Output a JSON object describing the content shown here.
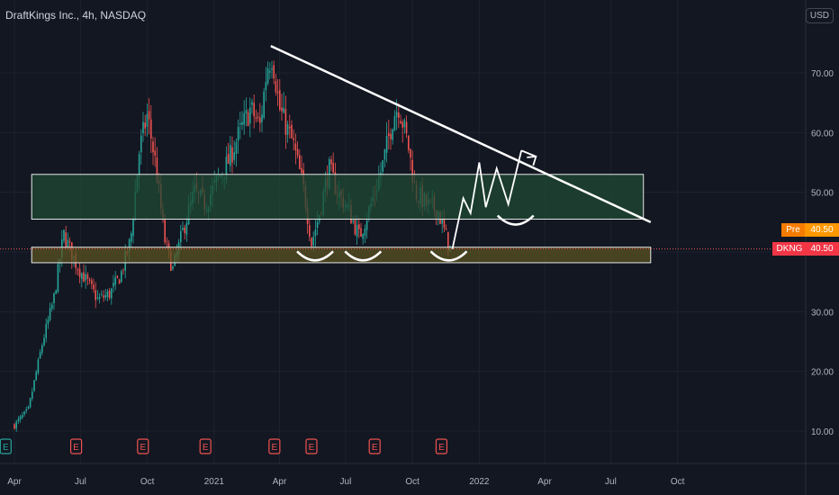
{
  "header": {
    "title": "DraftKings Inc., 4h, NASDAQ",
    "currency": "USD"
  },
  "price_tags": {
    "pre_label": "Pre",
    "pre_value": "40.50",
    "symbol_label": "DKNG",
    "symbol_value": "40.50"
  },
  "colors": {
    "background": "#131722",
    "up_candle": "#26a69a",
    "down_candle": "#ef5350",
    "upper_zone_fill": "#1f4a33",
    "lower_zone_fill": "#5a5220",
    "annotation": "#ffffff",
    "earnings_marker": "#ef5350",
    "grid": "#1e222d"
  },
  "chart_data": {
    "type": "candlestick",
    "y_ticks": [
      "70.00",
      "60.00",
      "50.00",
      "40.00",
      "30.00",
      "20.00",
      "10.00"
    ],
    "y_tick_values": [
      70,
      60,
      50,
      40,
      30,
      20,
      10
    ],
    "ylim": [
      4.5,
      81
    ],
    "x_ticks": [
      "Apr",
      "Jul",
      "Oct",
      "2021",
      "Apr",
      "Jul",
      "Oct",
      "2022",
      "Apr",
      "Jul",
      "Oct"
    ],
    "price_path": [
      [
        "2020-04-01",
        11.0
      ],
      [
        "2020-04-20",
        13.5
      ],
      [
        "2020-05-10",
        25.0
      ],
      [
        "2020-05-25",
        32.0
      ],
      [
        "2020-06-08",
        43.0
      ],
      [
        "2020-06-25",
        38.0
      ],
      [
        "2020-07-10",
        35.0
      ],
      [
        "2020-07-25",
        32.0
      ],
      [
        "2020-08-10",
        33.0
      ],
      [
        "2020-08-25",
        36.0
      ],
      [
        "2020-09-08",
        42.0
      ],
      [
        "2020-09-20",
        57.0
      ],
      [
        "2020-10-01",
        63.0
      ],
      [
        "2020-10-12",
        55.0
      ],
      [
        "2020-10-25",
        42.0
      ],
      [
        "2020-11-05",
        37.0
      ],
      [
        "2020-11-20",
        44.0
      ],
      [
        "2020-12-05",
        50.0
      ],
      [
        "2020-12-20",
        48.0
      ],
      [
        "2021-01-05",
        52.0
      ],
      [
        "2021-01-20",
        55.0
      ],
      [
        "2021-02-05",
        60.0
      ],
      [
        "2021-02-20",
        64.0
      ],
      [
        "2021-03-05",
        61.0
      ],
      [
        "2021-03-15",
        71.0
      ],
      [
        "2021-03-22",
        73.0
      ],
      [
        "2021-04-01",
        64.0
      ],
      [
        "2021-04-20",
        58.0
      ],
      [
        "2021-05-05",
        50.0
      ],
      [
        "2021-05-15",
        41.5
      ],
      [
        "2021-05-25",
        46.0
      ],
      [
        "2021-06-08",
        54.0
      ],
      [
        "2021-06-20",
        50.0
      ],
      [
        "2021-07-05",
        47.0
      ],
      [
        "2021-07-20",
        42.5
      ],
      [
        "2021-08-05",
        48.0
      ],
      [
        "2021-08-20",
        54.0
      ],
      [
        "2021-09-05",
        63.0
      ],
      [
        "2021-09-12",
        64.5
      ],
      [
        "2021-09-25",
        58.0
      ],
      [
        "2021-10-05",
        50.0
      ],
      [
        "2021-10-20",
        48.0
      ],
      [
        "2021-11-05",
        47.0
      ],
      [
        "2021-11-15",
        43.0
      ],
      [
        "2021-11-22",
        40.5
      ]
    ],
    "earnings_markers": [
      {
        "date": "2020-03-20",
        "label": "E",
        "kind": "dividend"
      },
      {
        "date": "2020-06-25",
        "label": "E"
      },
      {
        "date": "2020-09-25",
        "label": "E"
      },
      {
        "date": "2020-12-20",
        "label": "E"
      },
      {
        "date": "2021-03-25",
        "label": "E"
      },
      {
        "date": "2021-05-15",
        "label": "E"
      },
      {
        "date": "2021-08-10",
        "label": "E"
      },
      {
        "date": "2021-11-10",
        "label": "E"
      }
    ],
    "zones": [
      {
        "name": "upper",
        "y_min": 45.5,
        "y_max": 53.0,
        "x_start": "2020-06-01",
        "x_end": "2022-08-15"
      },
      {
        "name": "lower",
        "y_min": 38.2,
        "y_max": 40.8,
        "x_start": "2020-06-01",
        "x_end": "2022-08-25"
      }
    ],
    "trendline": {
      "from": [
        "2021-03-20",
        74.5
      ],
      "to": [
        "2022-08-25",
        45.0
      ]
    },
    "projection_path": [
      [
        "2021-11-25",
        40.5
      ],
      [
        "2021-12-10",
        49.0
      ],
      [
        "2021-12-20",
        46.5
      ],
      [
        "2022-01-01",
        55.0
      ],
      [
        "2022-01-10",
        47.5
      ],
      [
        "2022-01-25",
        54.0
      ],
      [
        "2022-02-10",
        48.0
      ],
      [
        "2022-02-28",
        57.0
      ]
    ],
    "projection_arrow_to": [
      "2022-03-20",
      56.0
    ],
    "smiles": [
      {
        "center": "2021-05-20",
        "y": 39.5
      },
      {
        "center": "2021-07-25",
        "y": 39.5
      },
      {
        "center": "2021-11-20",
        "y": 39.5
      },
      {
        "center": "2022-02-20",
        "y": 45.5
      }
    ],
    "last_price": 40.5
  }
}
